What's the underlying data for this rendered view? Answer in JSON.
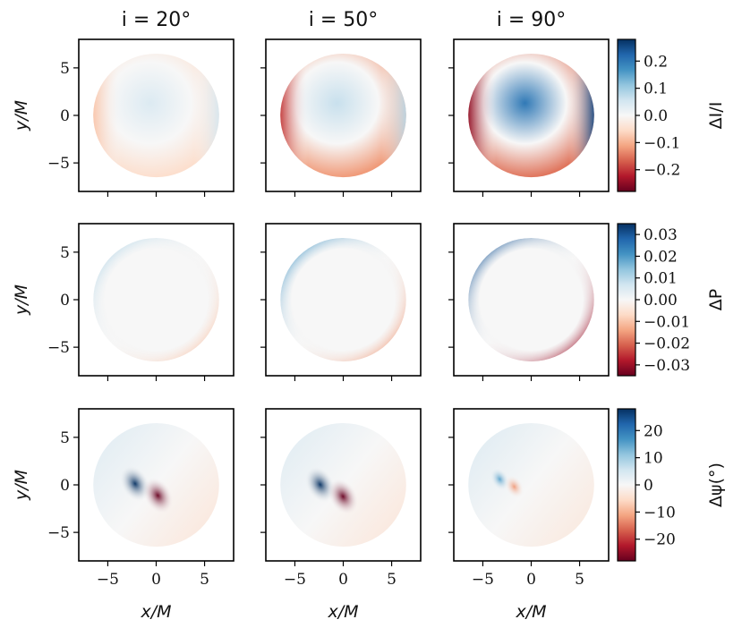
{
  "chart_data": {
    "type": "heatmap",
    "column_titles": [
      "i = 20°",
      "i = 50°",
      "i = 90°"
    ],
    "inclinations_deg": [
      20,
      50,
      90
    ],
    "xlabel": "x/M",
    "ylabel": "y/M",
    "xlim": [
      -8,
      8
    ],
    "ylim": [
      -8,
      8
    ],
    "xticks": [
      -5,
      0,
      5
    ],
    "yticks": [
      -5,
      0,
      5
    ],
    "xtick_labels": [
      "−5",
      "0",
      "5"
    ],
    "ytick_labels": [
      "−5",
      "0",
      "5"
    ],
    "image_radius": 6.5,
    "colormap": [
      "#67001f",
      "#b2182b",
      "#d6604d",
      "#f4a582",
      "#fddbc7",
      "#f7f7f7",
      "#d1e5f0",
      "#92c5de",
      "#4393c3",
      "#2166ac",
      "#053061"
    ],
    "rows": [
      {
        "quantity": "ΔI/I",
        "colorbar_label": "ΔI/I",
        "vmin": -0.28,
        "vmax": 0.28,
        "colorbar_ticks": [
          0.2,
          0.1,
          0.0,
          -0.1,
          -0.2
        ],
        "colorbar_tick_labels": [
          "0.2",
          "0.1",
          "0.0",
          "−0.1",
          "−0.2"
        ],
        "panels": [
          {
            "inclination": 20,
            "peak_positive": 0.05,
            "peak_negative": -0.08
          },
          {
            "inclination": 50,
            "peak_positive": 0.08,
            "peak_negative": -0.2
          },
          {
            "inclination": 90,
            "peak_positive": 0.25,
            "peak_negative": -0.25
          }
        ]
      },
      {
        "quantity": "ΔP",
        "colorbar_label": "ΔP",
        "vmin": -0.035,
        "vmax": 0.035,
        "colorbar_ticks": [
          0.03,
          0.02,
          0.01,
          0.0,
          -0.01,
          -0.02,
          -0.03
        ],
        "colorbar_tick_labels": [
          "0.03",
          "0.02",
          "0.01",
          "0.00",
          "−0.01",
          "−0.02",
          "−0.03"
        ],
        "panels": [
          {
            "inclination": 20,
            "peak_positive": 0.01,
            "peak_negative": -0.01
          },
          {
            "inclination": 50,
            "peak_positive": 0.02,
            "peak_negative": -0.015
          },
          {
            "inclination": 90,
            "peak_positive": 0.03,
            "peak_negative": -0.03
          }
        ]
      },
      {
        "quantity": "Δψ (°)",
        "colorbar_label": "Δψ(°)",
        "vmin": -28,
        "vmax": 28,
        "colorbar_ticks": [
          20,
          10,
          0,
          -10,
          -20
        ],
        "colorbar_tick_labels": [
          "20",
          "10",
          "0",
          "−10",
          "−20"
        ],
        "panels": [
          {
            "inclination": 20,
            "peak_positive": 28,
            "peak_negative": -28,
            "singularity_xy": [
              -1,
              -0.5
            ]
          },
          {
            "inclination": 50,
            "peak_positive": 28,
            "peak_negative": -28,
            "singularity_xy": [
              -1.2,
              -0.6
            ]
          },
          {
            "inclination": 90,
            "peak_positive": 15,
            "peak_negative": -12,
            "singularity_xy": [
              -2.5,
              0.2
            ]
          }
        ]
      }
    ]
  }
}
